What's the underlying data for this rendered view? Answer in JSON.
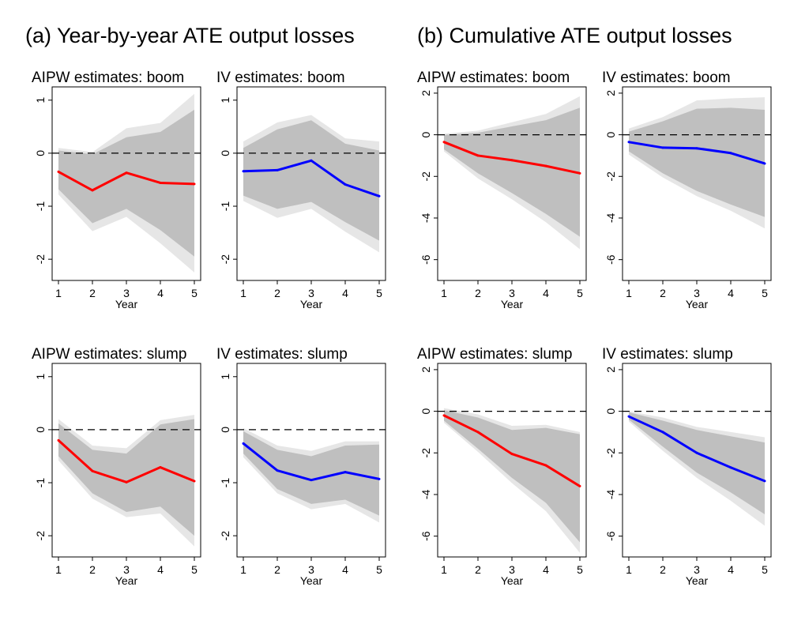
{
  "panels": {
    "a_title": "(a) Year-by-year ATE output losses",
    "b_title": "(b) Cumulative ATE output losses"
  },
  "colors": {
    "aipw": "#ff0000",
    "iv": "#0000ff",
    "outer_band": "#e6e6e6",
    "inner_band": "#bfbfbf"
  },
  "chart_data": [
    {
      "type": "line",
      "title": "AIPW estimates: boom",
      "xlabel": "Year",
      "ylabel": "",
      "x": [
        1,
        2,
        3,
        4,
        5
      ],
      "ylim": [
        -2.4,
        1.25
      ],
      "yticks": [
        1,
        0,
        -1,
        -2
      ],
      "color": "aipw",
      "values": [
        -0.35,
        -0.7,
        -0.37,
        -0.56,
        -0.58
      ],
      "ci_inner": {
        "lower": [
          -0.68,
          -1.32,
          -1.05,
          -1.45,
          -1.95
        ],
        "upper": [
          0.05,
          -0.02,
          0.3,
          0.4,
          0.82
        ]
      },
      "ci_outer": {
        "lower": [
          -0.78,
          -1.47,
          -1.2,
          -1.7,
          -2.25
        ],
        "upper": [
          0.1,
          0.02,
          0.47,
          0.57,
          1.12
        ]
      }
    },
    {
      "type": "line",
      "title": "IV estimates: boom",
      "xlabel": "Year",
      "ylabel": "",
      "x": [
        1,
        2,
        3,
        4,
        5
      ],
      "ylim": [
        -2.4,
        1.25
      ],
      "yticks": [
        1,
        0,
        -1,
        -2
      ],
      "color": "iv",
      "values": [
        -0.34,
        -0.32,
        -0.14,
        -0.59,
        -0.81
      ],
      "ci_inner": {
        "lower": [
          -0.8,
          -1.05,
          -0.92,
          -1.3,
          -1.65
        ],
        "upper": [
          0.1,
          0.45,
          0.62,
          0.18,
          0.05
        ]
      },
      "ci_outer": {
        "lower": [
          -0.9,
          -1.22,
          -1.05,
          -1.48,
          -1.87
        ],
        "upper": [
          0.22,
          0.58,
          0.72,
          0.28,
          0.22
        ]
      }
    },
    {
      "type": "line",
      "title": "AIPW estimates: boom",
      "xlabel": "Year",
      "ylabel": "",
      "x": [
        1,
        2,
        3,
        4,
        5
      ],
      "ylim": [
        -7.0,
        2.3
      ],
      "yticks": [
        2,
        0,
        -2,
        -4,
        -6
      ],
      "color": "aipw",
      "values": [
        -0.35,
        -1.0,
        -1.22,
        -1.5,
        -1.85
      ],
      "ci_inner": {
        "lower": [
          -0.7,
          -1.85,
          -2.8,
          -3.8,
          -4.9
        ],
        "upper": [
          0.0,
          0.1,
          0.4,
          0.7,
          1.3
        ]
      },
      "ci_outer": {
        "lower": [
          -0.8,
          -2.1,
          -3.1,
          -4.2,
          -5.5
        ],
        "upper": [
          0.05,
          0.2,
          0.6,
          1.0,
          1.85
        ]
      }
    },
    {
      "type": "line",
      "title": "IV estimates: boom",
      "xlabel": "Year",
      "ylabel": "",
      "x": [
        1,
        2,
        3,
        4,
        5
      ],
      "ylim": [
        -7.0,
        2.3
      ],
      "yticks": [
        2,
        0,
        -2,
        -4,
        -6
      ],
      "color": "iv",
      "values": [
        -0.35,
        -0.62,
        -0.65,
        -0.88,
        -1.38
      ],
      "ci_inner": {
        "lower": [
          -0.8,
          -1.85,
          -2.7,
          -3.35,
          -3.95
        ],
        "upper": [
          0.15,
          0.65,
          1.25,
          1.3,
          1.2
        ]
      },
      "ci_outer": {
        "lower": [
          -0.95,
          -2.05,
          -2.95,
          -3.65,
          -4.5
        ],
        "upper": [
          0.3,
          0.85,
          1.65,
          1.75,
          1.8
        ]
      }
    },
    {
      "type": "line",
      "title": "AIPW estimates: slump",
      "xlabel": "Year",
      "ylabel": "",
      "x": [
        1,
        2,
        3,
        4,
        5
      ],
      "ylim": [
        -2.4,
        1.25
      ],
      "yticks": [
        1,
        0,
        -1,
        -2
      ],
      "color": "aipw",
      "values": [
        -0.2,
        -0.78,
        -0.99,
        -0.71,
        -0.97
      ],
      "ci_inner": {
        "lower": [
          -0.5,
          -1.2,
          -1.55,
          -1.45,
          -2.0
        ],
        "upper": [
          0.12,
          -0.38,
          -0.45,
          0.1,
          0.2
        ]
      },
      "ci_outer": {
        "lower": [
          -0.58,
          -1.3,
          -1.65,
          -1.58,
          -2.2
        ],
        "upper": [
          0.2,
          -0.3,
          -0.35,
          0.18,
          0.28
        ]
      }
    },
    {
      "type": "line",
      "title": "IV estimates: slump",
      "xlabel": "Year",
      "ylabel": "",
      "x": [
        1,
        2,
        3,
        4,
        5
      ],
      "ylim": [
        -2.4,
        1.25
      ],
      "yticks": [
        1,
        0,
        -1,
        -2
      ],
      "color": "iv",
      "values": [
        -0.26,
        -0.77,
        -0.95,
        -0.8,
        -0.93
      ],
      "ci_inner": {
        "lower": [
          -0.45,
          -1.12,
          -1.4,
          -1.32,
          -1.62
        ],
        "upper": [
          -0.03,
          -0.38,
          -0.5,
          -0.3,
          -0.28
        ]
      },
      "ci_outer": {
        "lower": [
          -0.52,
          -1.2,
          -1.5,
          -1.4,
          -1.75
        ],
        "upper": [
          0.03,
          -0.3,
          -0.4,
          -0.22,
          -0.22
        ]
      }
    },
    {
      "type": "line",
      "title": "AIPW estimates: slump",
      "xlabel": "Year",
      "ylabel": "",
      "x": [
        1,
        2,
        3,
        4,
        5
      ],
      "ylim": [
        -7.0,
        2.3
      ],
      "yticks": [
        2,
        0,
        -2,
        -4,
        -6
      ],
      "color": "aipw",
      "values": [
        -0.2,
        -1.0,
        -2.05,
        -2.6,
        -3.6
      ],
      "ci_inner": {
        "lower": [
          -0.45,
          -1.8,
          -3.2,
          -4.4,
          -6.3
        ],
        "upper": [
          0.05,
          -0.3,
          -0.9,
          -0.8,
          -1.1
        ]
      },
      "ci_outer": {
        "lower": [
          -0.55,
          -1.95,
          -3.45,
          -4.8,
          -6.8
        ],
        "upper": [
          0.15,
          -0.15,
          -0.7,
          -0.65,
          -1.0
        ]
      }
    },
    {
      "type": "line",
      "title": "IV estimates: slump",
      "xlabel": "Year",
      "ylabel": "",
      "x": [
        1,
        2,
        3,
        4,
        5
      ],
      "ylim": [
        -7.0,
        2.3
      ],
      "yticks": [
        2,
        0,
        -2,
        -4,
        -6
      ],
      "color": "iv",
      "values": [
        -0.25,
        -1.0,
        -2.0,
        -2.7,
        -3.35
      ],
      "ci_inner": {
        "lower": [
          -0.4,
          -1.7,
          -2.95,
          -3.9,
          -4.95
        ],
        "upper": [
          -0.05,
          -0.45,
          -0.9,
          -1.2,
          -1.5
        ]
      },
      "ci_outer": {
        "lower": [
          -0.5,
          -1.9,
          -3.2,
          -4.3,
          -5.5
        ],
        "upper": [
          0.0,
          -0.3,
          -0.75,
          -1.0,
          -1.25
        ]
      }
    }
  ]
}
